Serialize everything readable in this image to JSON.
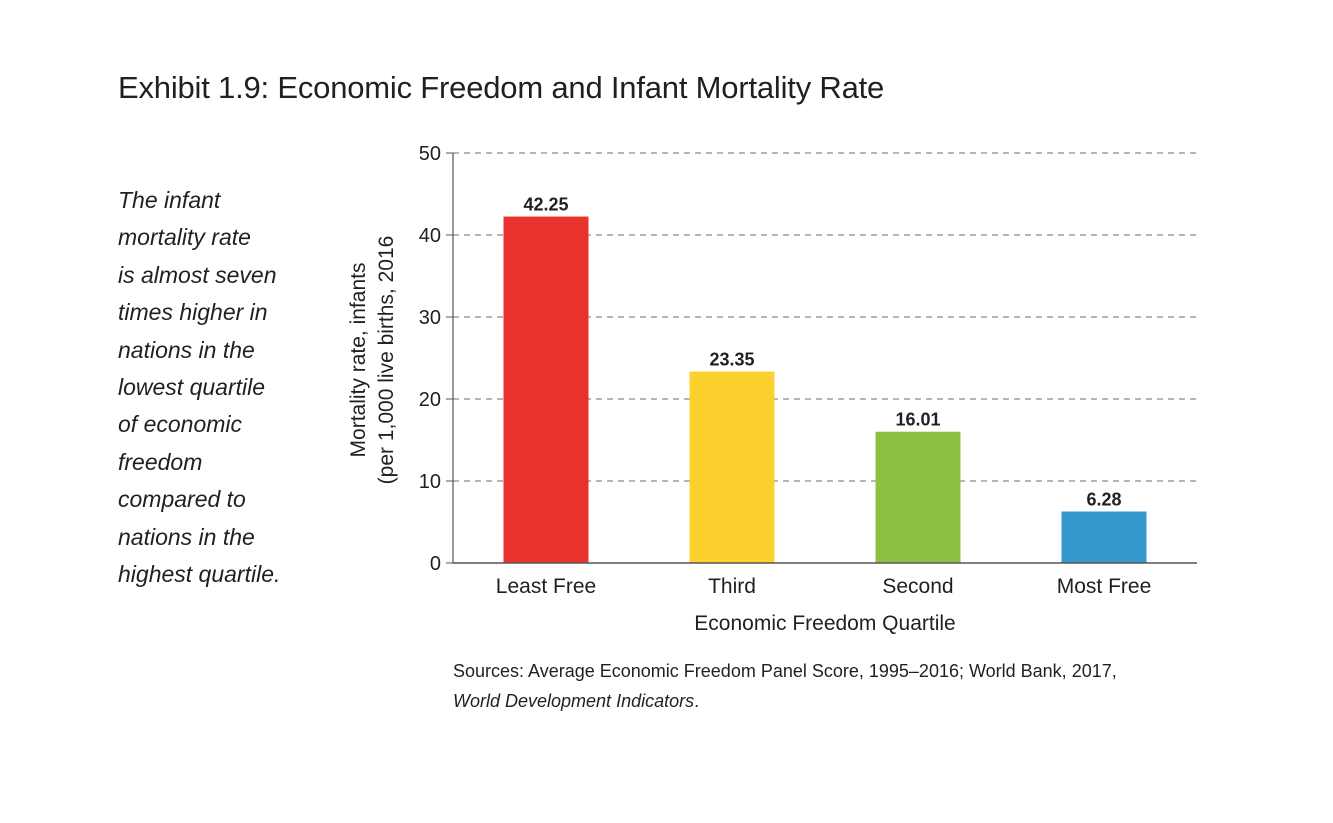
{
  "title": "Exhibit 1.9: Economic Freedom and Infant Mortality Rate",
  "sidebar_lines": [
    "The infant",
    "mortality rate",
    "is almost seven",
    "times higher in",
    "nations in the",
    "lowest quartile",
    "of  economic",
    "freedom",
    "compared to",
    "nations in the",
    "highest quartile."
  ],
  "sources": {
    "line1": "Sources: Average Economic Freedom Panel Score, 1995–2016; World Bank, 2017,",
    "line2_italic": "World Development Indicators",
    "line2_end": "."
  },
  "chart_data": {
    "type": "bar",
    "title": "Exhibit 1.9: Economic Freedom and Infant Mortality Rate",
    "categories": [
      "Least Free",
      "Third",
      "Second",
      "Most Free"
    ],
    "values": [
      42.25,
      23.35,
      16.01,
      6.28
    ],
    "value_labels": [
      "42.25",
      "23.35",
      "16.01",
      "6.28"
    ],
    "bar_colors": [
      "#e8332d",
      "#fcd12f",
      "#8dc145",
      "#3499cc"
    ],
    "xlabel": "Economic Freedom Quartile",
    "ylabel_lines": [
      "Mortality rate, infants",
      "(per 1,000 live births, 2016"
    ],
    "ylim": [
      0,
      50
    ],
    "yticks": [
      0,
      10,
      20,
      30,
      40,
      50
    ],
    "grid": "dashed-horizontal"
  }
}
